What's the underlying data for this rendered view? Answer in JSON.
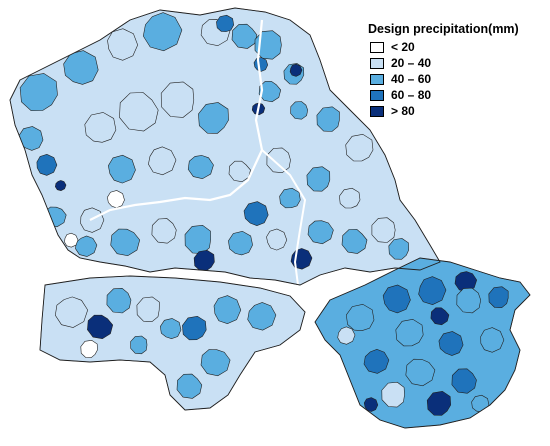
{
  "legend": {
    "title": "Design precipitation(mm)",
    "classes": [
      {
        "label": "< 20",
        "color": "#ffffff"
      },
      {
        "label": "20 – 40",
        "color": "#c9e0f4"
      },
      {
        "label": "40 – 60",
        "color": "#5aaee0"
      },
      {
        "label": "60 – 80",
        "color": "#1f73bb"
      },
      {
        "label": "> 80",
        "color": "#0a2f7a"
      }
    ]
  },
  "colors": {
    "outline": "#222222",
    "river": "#ffffff",
    "background": "#ffffff"
  }
}
